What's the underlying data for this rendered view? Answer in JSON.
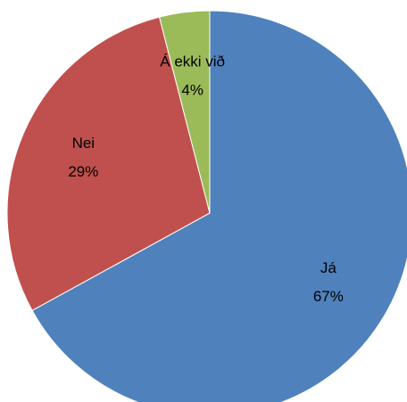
{
  "chart_data": {
    "type": "pie",
    "categories": [
      "Já",
      "Nei",
      "Á ekki við"
    ],
    "values": [
      67,
      29,
      4
    ],
    "value_labels": [
      "67%",
      "29%",
      "4%"
    ],
    "colors": [
      "#4f81bd",
      "#c0504d",
      "#9bbb59"
    ]
  }
}
